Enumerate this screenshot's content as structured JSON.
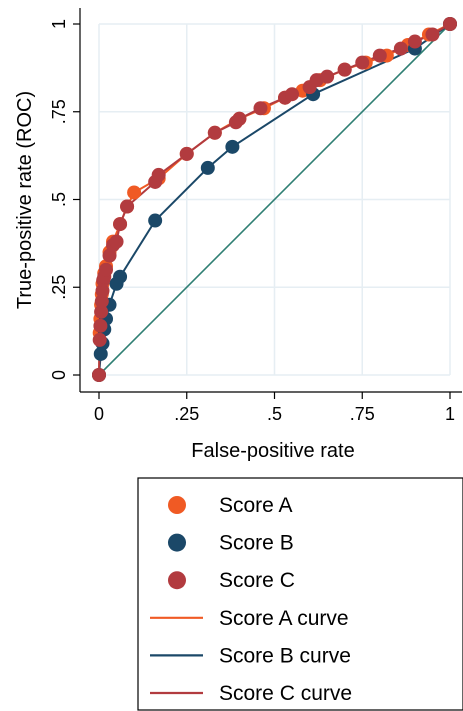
{
  "chart_data": {
    "type": "scatter",
    "xlabel": "False-positive rate",
    "ylabel": "True-positive rate (ROC)",
    "xlim": [
      0,
      1
    ],
    "ylim": [
      0,
      1
    ],
    "xticks": [
      {
        "v": 0,
        "label": "0"
      },
      {
        "v": 0.25,
        "label": ".25"
      },
      {
        "v": 0.5,
        "label": ".5"
      },
      {
        "v": 0.75,
        "label": ".75"
      },
      {
        "v": 1,
        "label": "1"
      }
    ],
    "yticks": [
      {
        "v": 0,
        "label": "0"
      },
      {
        "v": 0.25,
        "label": ".25"
      },
      {
        "v": 0.5,
        "label": ".5"
      },
      {
        "v": 0.75,
        "label": ".75"
      },
      {
        "v": 1,
        "label": "1"
      }
    ],
    "grid": true,
    "legend_position": "bottom",
    "reference_line": {
      "x": [
        0,
        1
      ],
      "y": [
        0,
        1
      ],
      "color": "#2f7f73"
    },
    "series": [
      {
        "name": "Score A",
        "color": "#f05a24",
        "points": [
          [
            0,
            0
          ],
          [
            0.002,
            0.12
          ],
          [
            0.004,
            0.16
          ],
          [
            0.006,
            0.2
          ],
          [
            0.008,
            0.23
          ],
          [
            0.01,
            0.26
          ],
          [
            0.015,
            0.29
          ],
          [
            0.02,
            0.31
          ],
          [
            0.03,
            0.35
          ],
          [
            0.04,
            0.38
          ],
          [
            0.06,
            0.43
          ],
          [
            0.08,
            0.48
          ],
          [
            0.1,
            0.52
          ],
          [
            0.17,
            0.56
          ],
          [
            0.25,
            0.63
          ],
          [
            0.33,
            0.69
          ],
          [
            0.4,
            0.73
          ],
          [
            0.47,
            0.76
          ],
          [
            0.53,
            0.79
          ],
          [
            0.58,
            0.81
          ],
          [
            0.63,
            0.84
          ],
          [
            0.7,
            0.87
          ],
          [
            0.76,
            0.89
          ],
          [
            0.82,
            0.91
          ],
          [
            0.88,
            0.94
          ],
          [
            0.94,
            0.97
          ],
          [
            1,
            1
          ]
        ]
      },
      {
        "name": "Score B",
        "color": "#1b4868",
        "points": [
          [
            0,
            0
          ],
          [
            0.005,
            0.06
          ],
          [
            0.01,
            0.09
          ],
          [
            0.015,
            0.13
          ],
          [
            0.02,
            0.16
          ],
          [
            0.03,
            0.2
          ],
          [
            0.05,
            0.26
          ],
          [
            0.06,
            0.28
          ],
          [
            0.16,
            0.44
          ],
          [
            0.31,
            0.59
          ],
          [
            0.38,
            0.65
          ],
          [
            0.61,
            0.8
          ],
          [
            0.9,
            0.93
          ],
          [
            1,
            1
          ]
        ]
      },
      {
        "name": "Score C",
        "color": "#b23b3f",
        "points": [
          [
            0,
            0
          ],
          [
            0.002,
            0.1
          ],
          [
            0.004,
            0.14
          ],
          [
            0.006,
            0.18
          ],
          [
            0.008,
            0.21
          ],
          [
            0.01,
            0.24
          ],
          [
            0.012,
            0.27
          ],
          [
            0.015,
            0.28
          ],
          [
            0.02,
            0.3
          ],
          [
            0.03,
            0.34
          ],
          [
            0.04,
            0.37
          ],
          [
            0.05,
            0.38
          ],
          [
            0.06,
            0.43
          ],
          [
            0.08,
            0.48
          ],
          [
            0.16,
            0.55
          ],
          [
            0.17,
            0.57
          ],
          [
            0.25,
            0.63
          ],
          [
            0.33,
            0.69
          ],
          [
            0.39,
            0.72
          ],
          [
            0.4,
            0.73
          ],
          [
            0.46,
            0.76
          ],
          [
            0.53,
            0.79
          ],
          [
            0.55,
            0.8
          ],
          [
            0.6,
            0.82
          ],
          [
            0.62,
            0.84
          ],
          [
            0.65,
            0.85
          ],
          [
            0.7,
            0.87
          ],
          [
            0.75,
            0.89
          ],
          [
            0.8,
            0.91
          ],
          [
            0.86,
            0.93
          ],
          [
            0.9,
            0.95
          ],
          [
            0.95,
            0.97
          ],
          [
            1,
            1
          ]
        ]
      }
    ],
    "curves": [
      {
        "name": "Score A curve",
        "color": "#f05a24"
      },
      {
        "name": "Score B curve",
        "color": "#1b4868"
      },
      {
        "name": "Score C curve",
        "color": "#b23b3f"
      }
    ]
  }
}
